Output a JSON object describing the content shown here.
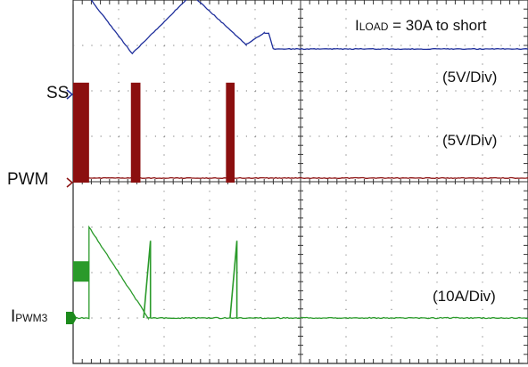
{
  "chart_data": {
    "type": "line",
    "title": "",
    "xlabel": "",
    "ylabel": "",
    "grid": true,
    "divisions": {
      "x": 10,
      "y": 8
    },
    "annotation": {
      "prefix": "I",
      "subscript": "LOAD",
      "rest": " = 30A to short"
    },
    "channels": [
      {
        "name": "SS",
        "scale": "(5V/Div)",
        "color": "#1f2f9c",
        "marker_color": "#1f2f9c",
        "points": [
          [
            0.0,
            2.2
          ],
          [
            0.3,
            2.2
          ],
          [
            1.3,
            0.9
          ],
          [
            2.6,
            2.2
          ],
          [
            3.8,
            1.1
          ],
          [
            4.2,
            1.35
          ],
          [
            4.3,
            1.35
          ],
          [
            4.4,
            1.0
          ],
          [
            10.0,
            1.0
          ]
        ]
      },
      {
        "name": "PWM",
        "scale": "(5V/Div)",
        "color": "#8b0f0f",
        "marker_color": "#8b1010",
        "points": [
          [
            0.0,
            0.1
          ],
          [
            1.2,
            0.1
          ],
          [
            1.2,
            0.1
          ],
          [
            4.3,
            0.1
          ],
          [
            10.0,
            0.1
          ]
        ],
        "bursts": [
          [
            0.0,
            0.35
          ],
          [
            1.27,
            1.48
          ],
          [
            3.36,
            3.55
          ]
        ]
      },
      {
        "name": "I",
        "name_sub": "PWM3",
        "scale": "(10A/Div)",
        "color": "#2a9a2a",
        "marker_color": "#1c8a1c",
        "points": [
          [
            0.0,
            0.0
          ],
          [
            0.35,
            0.0
          ],
          [
            0.35,
            2.0
          ],
          [
            1.65,
            0.0
          ],
          [
            10.0,
            0.0
          ]
        ]
      }
    ]
  }
}
